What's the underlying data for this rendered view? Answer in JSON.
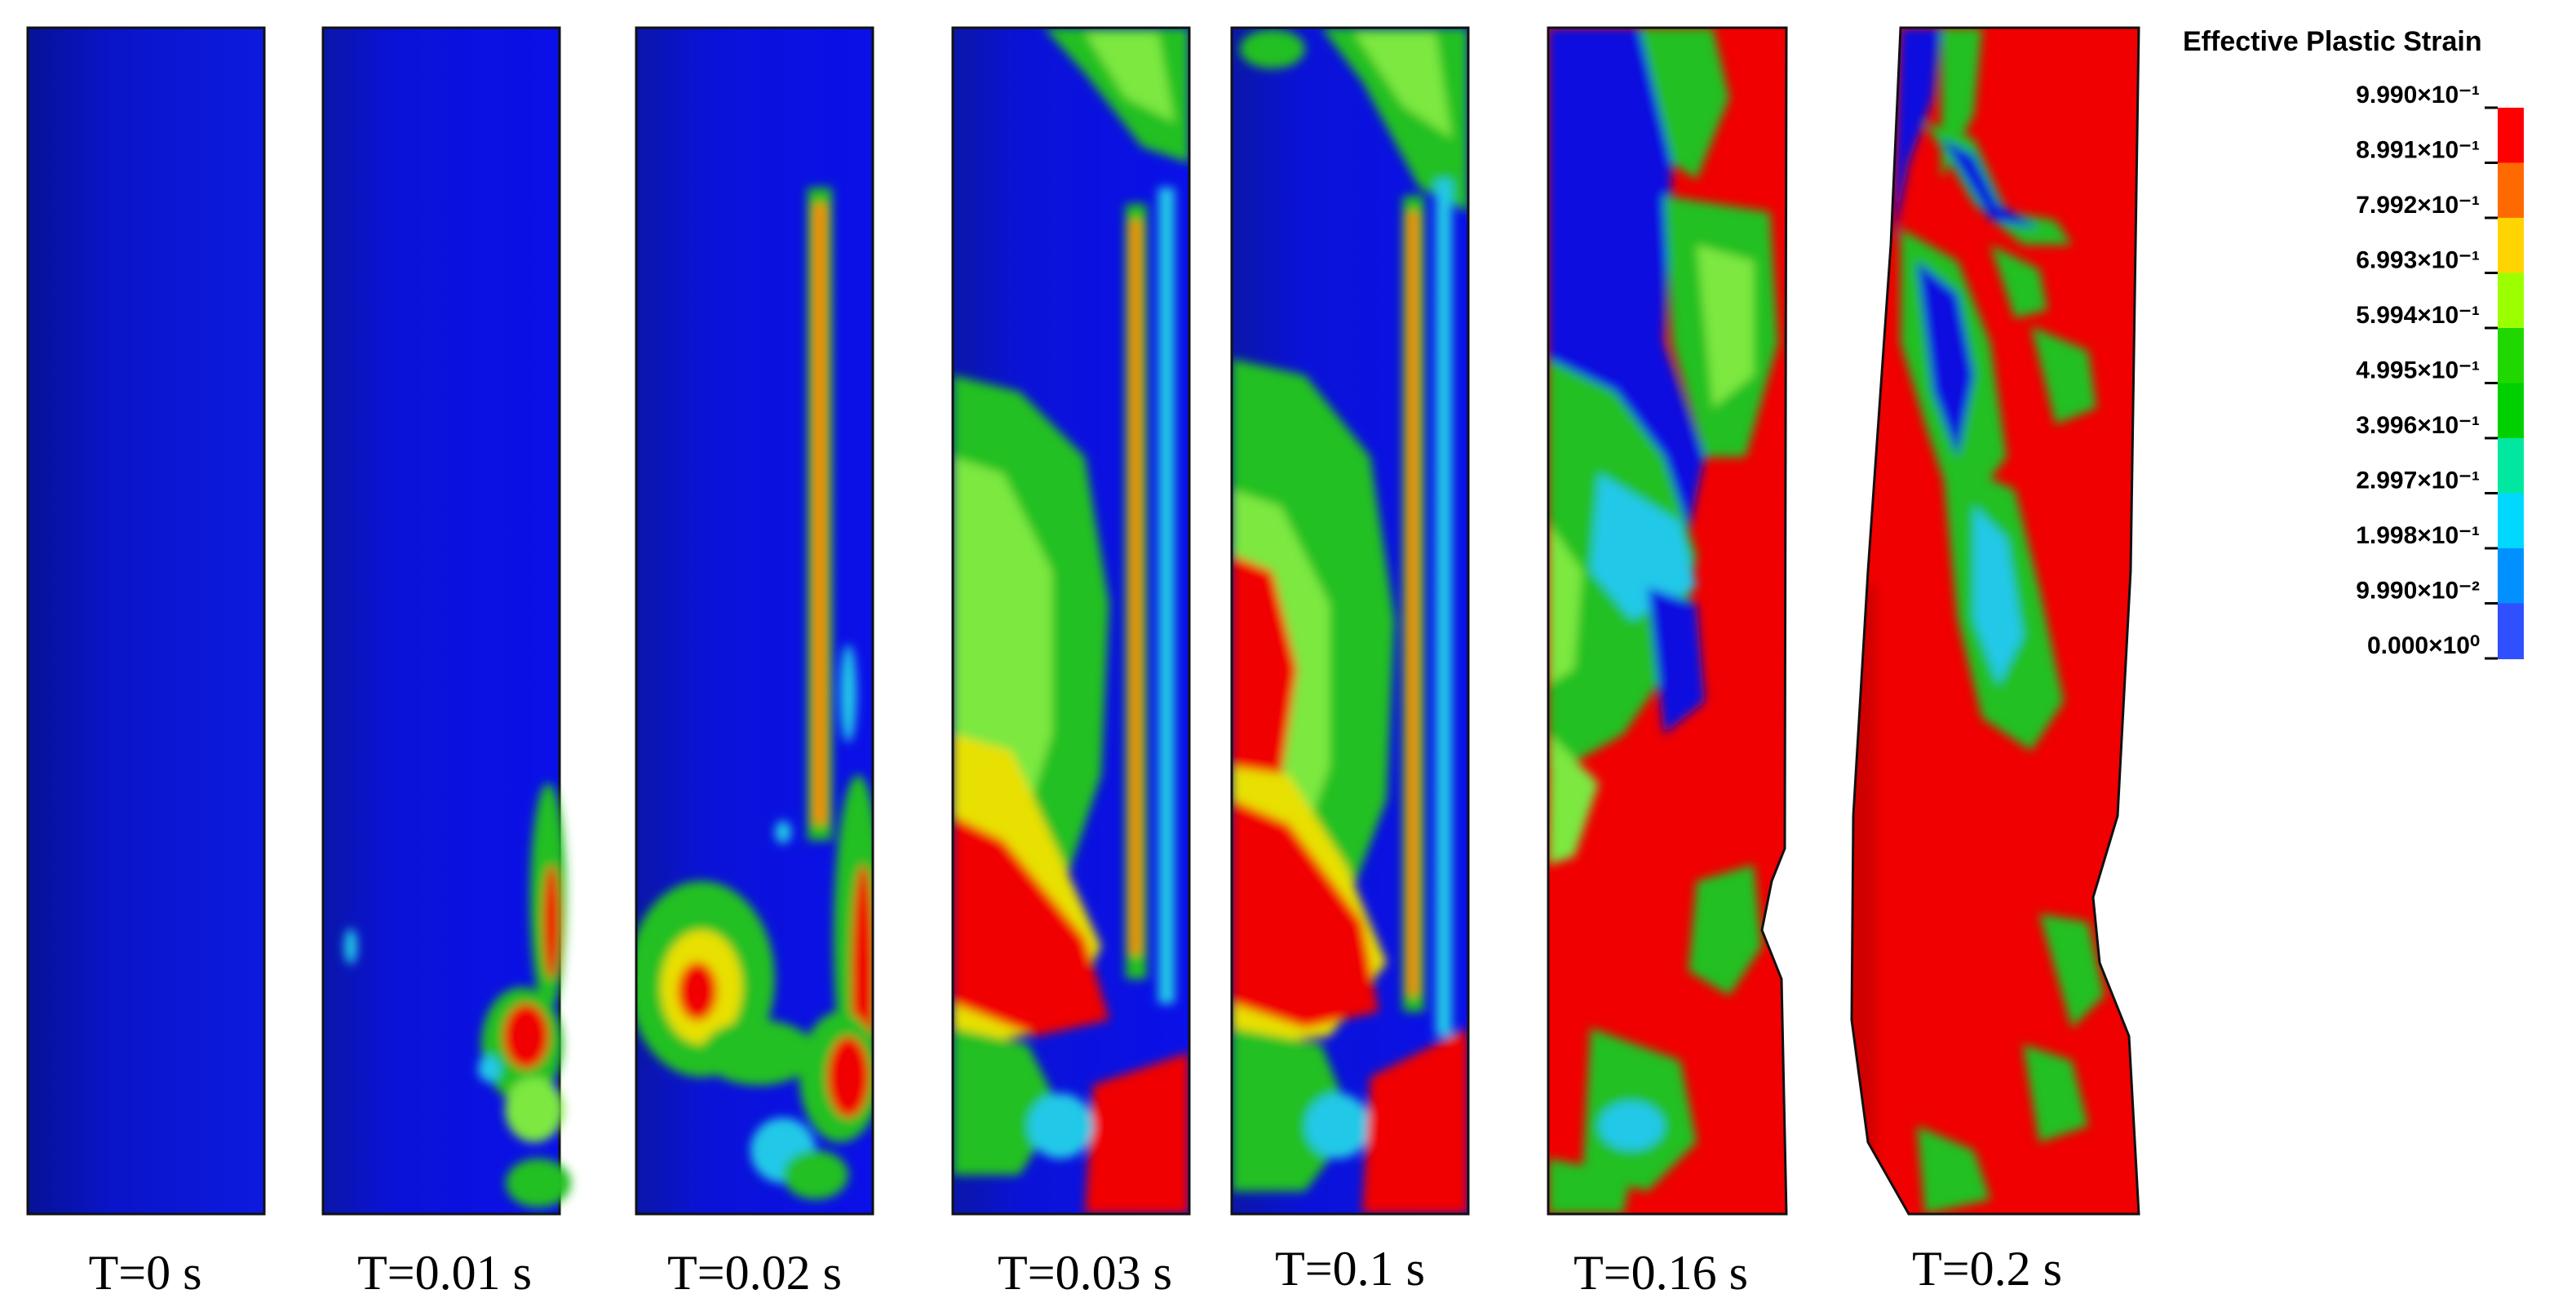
{
  "legend": {
    "title": "Effective Plastic Strain",
    "ticks": [
      "9.990×10⁻¹",
      "8.991×10⁻¹",
      "7.992×10⁻¹",
      "6.993×10⁻¹",
      "5.994×10⁻¹",
      "4.995×10⁻¹",
      "3.996×10⁻¹",
      "2.997×10⁻¹",
      "1.998×10⁻¹",
      "9.990×10⁻²",
      "0.000×10⁰"
    ],
    "colors": [
      "#ff0000",
      "#ff6a00",
      "#ffd400",
      "#9cff00",
      "#20d800",
      "#00d000",
      "#00e8a0",
      "#00d8ff",
      "#0090ff",
      "#3050ff"
    ]
  },
  "colors": {
    "blue": "#0a10d8",
    "dark_blue": "#061296",
    "green": "#20c020",
    "light_green": "#7ce840",
    "yellow": "#e8e000",
    "orange": "#ff8000",
    "red": "#f00000",
    "cyan": "#20c8e8"
  },
  "panels": [
    {
      "label": "T=0 s"
    },
    {
      "label": "T=0.01 s"
    },
    {
      "label": "T=0.02 s"
    },
    {
      "label": "T=0.03 s"
    },
    {
      "label": "T=0.1 s"
    },
    {
      "label": "T=0.16 s"
    },
    {
      "label": "T=0.2 s"
    }
  ]
}
